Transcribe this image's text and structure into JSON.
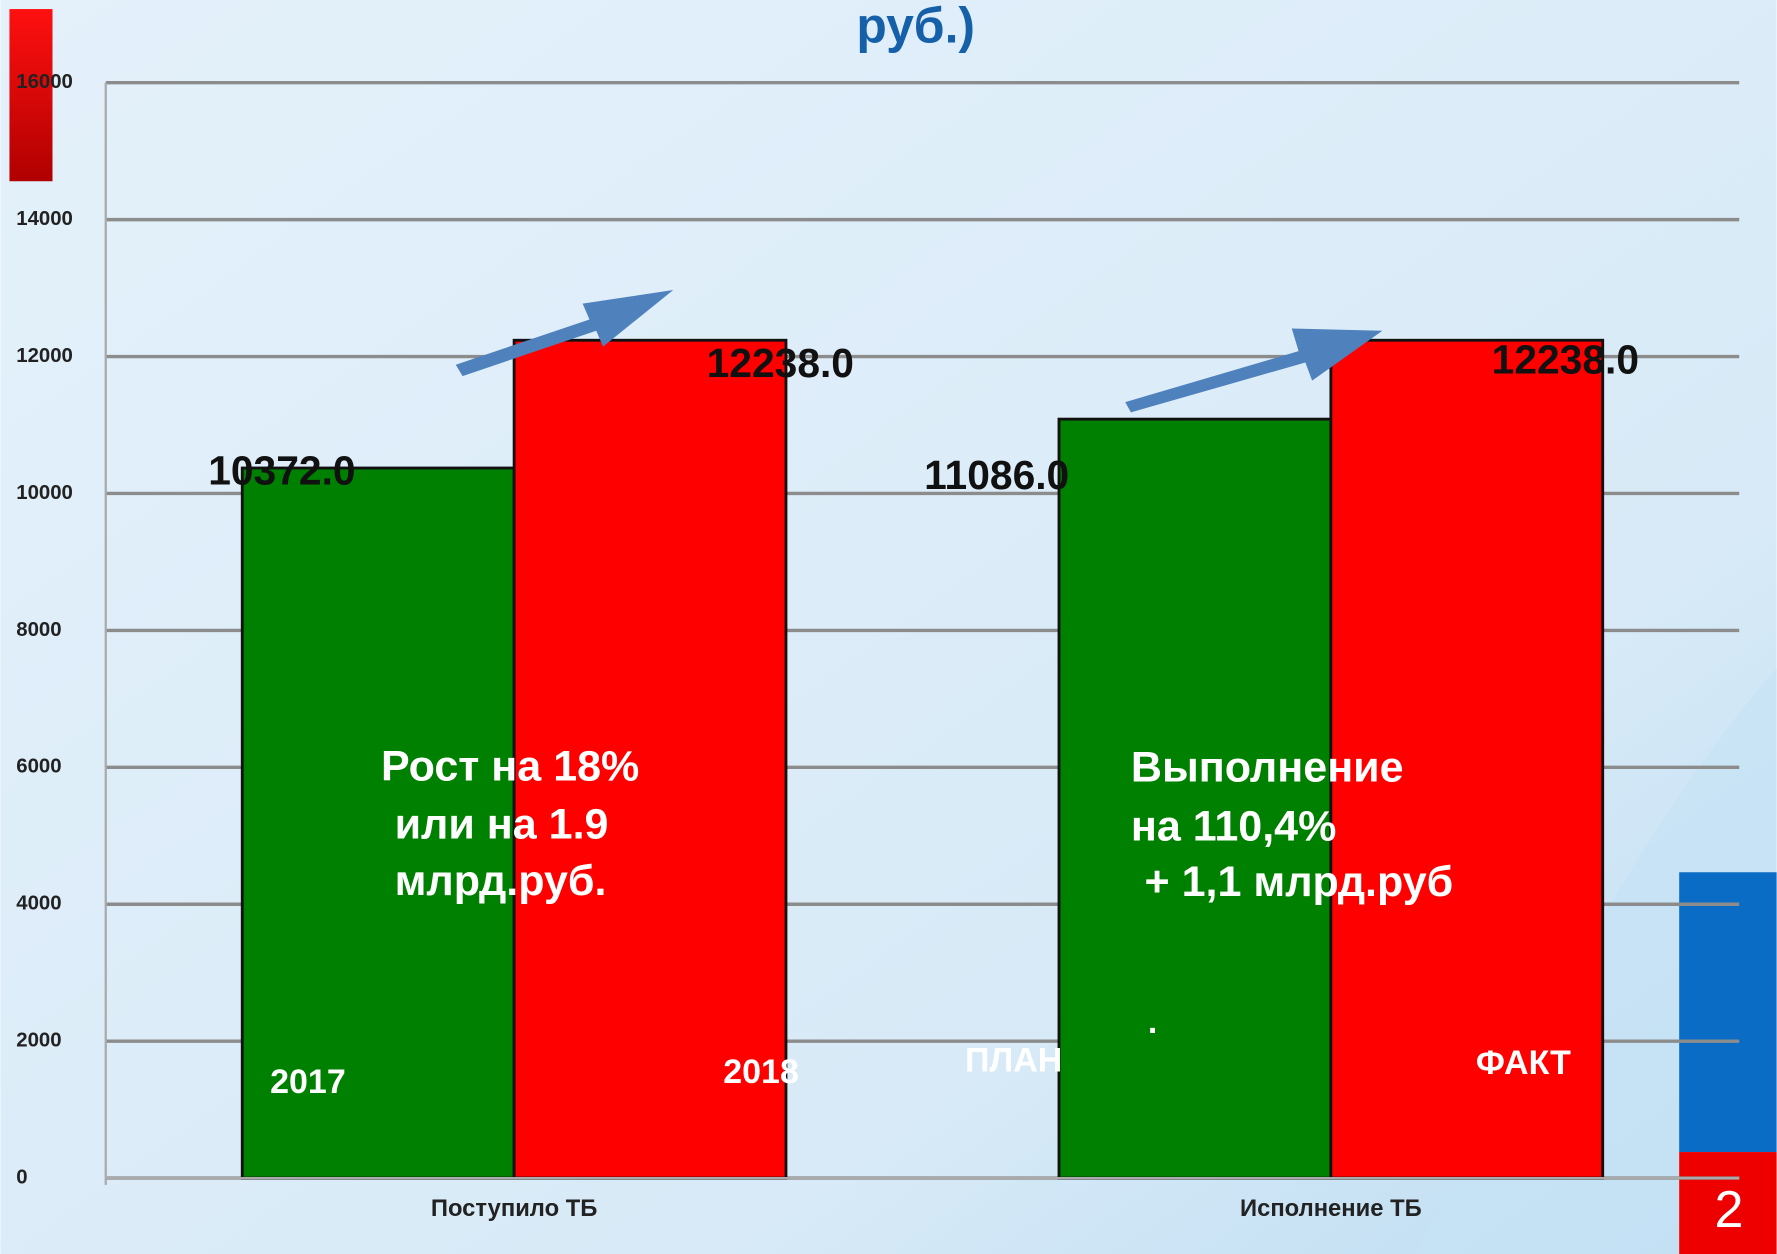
{
  "chart_data": {
    "type": "bar",
    "title": "руб.)",
    "categories": [
      "Поступило ТБ",
      "Исполнение ТБ"
    ],
    "series": [
      {
        "color": "#008000",
        "values": [
          10372,
          11086
        ],
        "value_labels": [
          "10372.0",
          "11086.0"
        ],
        "bar_labels": [
          "2017",
          "ПЛАН"
        ]
      },
      {
        "color": "#ff0000",
        "values": [
          12238,
          12238
        ],
        "value_labels": [
          "12238.0",
          "12238.0"
        ],
        "bar_labels": [
          "2018",
          "ФАКТ"
        ]
      }
    ],
    "ylim": [
      0,
      16000
    ],
    "yticks": [
      0,
      2000,
      4000,
      6000,
      8000,
      10000,
      12000,
      14000,
      16000
    ],
    "grid": true,
    "annotations": [
      [
        "Рост на 18%",
        "или на 1.9",
        "млрд.руб."
      ],
      [
        "Выполнение",
        "на 110,4%",
        "+ 1,1 млрд.руб"
      ],
      [
        "."
      ]
    ],
    "page_number": "2"
  }
}
